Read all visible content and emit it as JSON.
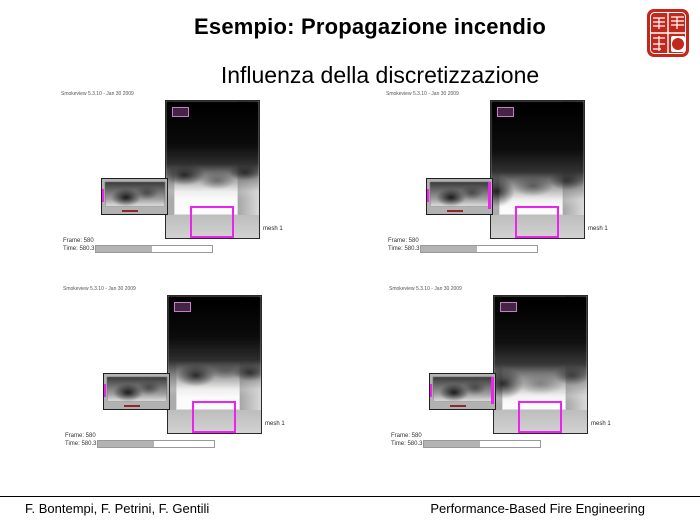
{
  "slide": {
    "title": "Esempio: Propagazione incendio",
    "subtitle": "Influenza della discretizzazione"
  },
  "footer": {
    "authors": "F. Bontempi, F. Petrini, F. Gentili",
    "course": "Performance-Based Fire Engineering"
  },
  "stamp": {
    "icon": "red-seal-stamp"
  },
  "colors": {
    "seal_red": "#c3281c",
    "vent_magenta": "#ee22ee",
    "burner_red": "#8b2a2a",
    "smoke_dark": "#000000",
    "wall_gray": "#c6c6c6"
  },
  "sims": [
    {
      "position": "top-left",
      "header": "Smokeview 5.3.10 - Jan 30 2009",
      "mesh_label": "mesh 1",
      "frame_label": "Frame: 580",
      "time_label": "Time: 580.3",
      "progress_percent": 48
    },
    {
      "position": "top-right",
      "header": "Smokeview 5.3.10 - Jan 30 2009",
      "mesh_label": "mesh 1",
      "frame_label": "Frame: 580",
      "time_label": "Time: 580.3",
      "progress_percent": 48
    },
    {
      "position": "bottom-left",
      "header": "Smokeview 5.3.10 - Jan 30 2009",
      "mesh_label": "mesh 1",
      "frame_label": "Frame: 580",
      "time_label": "Time: 580.3",
      "progress_percent": 48
    },
    {
      "position": "bottom-right",
      "header": "Smokeview 5.3.10 - Jan 30 2009",
      "mesh_label": "mesh 1",
      "frame_label": "Frame: 580",
      "time_label": "Time: 580.3",
      "progress_percent": 48
    }
  ]
}
